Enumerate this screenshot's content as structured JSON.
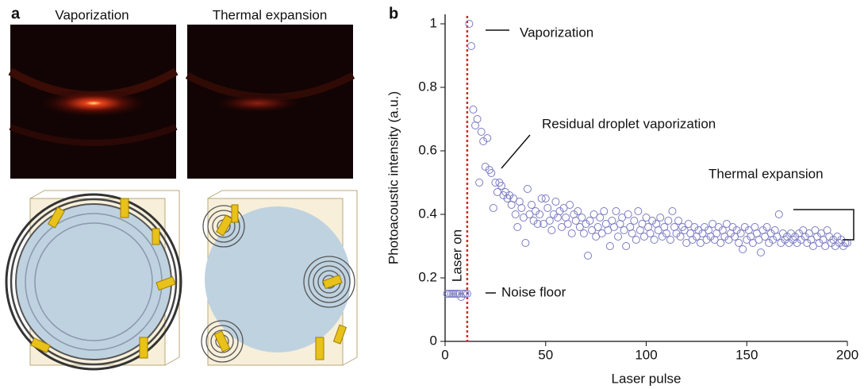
{
  "panel_a": {
    "label": "a",
    "titles": [
      "Vaporization",
      "Thermal expansion"
    ]
  },
  "chart_data": {
    "type": "scatter",
    "label": "b",
    "xlabel": "Laser pulse",
    "ylabel": "Photoacoustic intensity (a.u.)",
    "xlim": [
      0,
      200
    ],
    "xticks": [
      0,
      50,
      100,
      150,
      200
    ],
    "ylim": [
      0,
      1.03
    ],
    "yticks": [
      0,
      0.2,
      0.4,
      0.6,
      0.8,
      1
    ],
    "color": "#7a7ac4",
    "laser_on": {
      "x": 11,
      "color": "#d42a2a",
      "label": "Laser on"
    },
    "annotations": [
      "Vaporization",
      "Residual droplet  vaporization",
      "Thermal expansion",
      "Noise floor"
    ],
    "x": [
      1,
      2,
      3,
      4,
      5,
      6,
      7,
      8,
      9,
      10,
      11,
      12,
      13,
      14,
      15,
      16,
      17,
      18,
      19,
      20,
      21,
      22,
      23,
      24,
      25,
      26,
      27,
      28,
      29,
      30,
      31,
      32,
      33,
      34,
      35,
      36,
      37,
      38,
      39,
      40,
      41,
      42,
      43,
      44,
      45,
      46,
      47,
      48,
      49,
      50,
      51,
      52,
      53,
      54,
      55,
      56,
      57,
      58,
      59,
      60,
      61,
      62,
      63,
      64,
      65,
      66,
      67,
      68,
      69,
      70,
      71,
      72,
      73,
      74,
      75,
      76,
      77,
      78,
      79,
      80,
      81,
      82,
      83,
      84,
      85,
      86,
      87,
      88,
      89,
      90,
      91,
      92,
      93,
      94,
      95,
      96,
      97,
      98,
      99,
      100,
      101,
      102,
      103,
      104,
      105,
      106,
      107,
      108,
      109,
      110,
      111,
      112,
      113,
      114,
      115,
      116,
      117,
      118,
      119,
      120,
      121,
      122,
      123,
      124,
      125,
      126,
      127,
      128,
      129,
      130,
      131,
      132,
      133,
      134,
      135,
      136,
      137,
      138,
      139,
      140,
      141,
      142,
      143,
      144,
      145,
      146,
      147,
      148,
      149,
      150,
      151,
      152,
      153,
      154,
      155,
      156,
      157,
      158,
      159,
      160,
      161,
      162,
      163,
      164,
      165,
      166,
      167,
      168,
      169,
      170,
      171,
      172,
      173,
      174,
      175,
      176,
      177,
      178,
      179,
      180,
      181,
      182,
      183,
      184,
      185,
      186,
      187,
      188,
      189,
      190,
      191,
      192,
      193,
      194,
      195,
      196,
      197,
      198,
      199,
      200
    ],
    "values": [
      0.15,
      0.15,
      0.15,
      0.15,
      0.15,
      0.15,
      0.15,
      0.14,
      0.15,
      0.15,
      0.15,
      1.0,
      0.93,
      0.73,
      0.68,
      0.7,
      0.5,
      0.66,
      0.63,
      0.55,
      0.64,
      0.54,
      0.53,
      0.42,
      0.5,
      0.47,
      0.5,
      0.49,
      0.46,
      0.47,
      0.45,
      0.46,
      0.43,
      0.45,
      0.4,
      0.36,
      0.44,
      0.42,
      0.39,
      0.31,
      0.48,
      0.4,
      0.43,
      0.38,
      0.41,
      0.37,
      0.4,
      0.45,
      0.37,
      0.45,
      0.42,
      0.38,
      0.35,
      0.4,
      0.44,
      0.39,
      0.41,
      0.36,
      0.42,
      0.39,
      0.37,
      0.43,
      0.34,
      0.4,
      0.38,
      0.41,
      0.36,
      0.39,
      0.34,
      0.37,
      0.27,
      0.38,
      0.35,
      0.4,
      0.33,
      0.36,
      0.39,
      0.34,
      0.41,
      0.37,
      0.35,
      0.3,
      0.38,
      0.36,
      0.41,
      0.33,
      0.37,
      0.39,
      0.35,
      0.3,
      0.4,
      0.36,
      0.34,
      0.38,
      0.32,
      0.41,
      0.35,
      0.37,
      0.33,
      0.39,
      0.36,
      0.34,
      0.38,
      0.32,
      0.37,
      0.35,
      0.39,
      0.33,
      0.36,
      0.34,
      0.38,
      0.32,
      0.41,
      0.36,
      0.34,
      0.38,
      0.33,
      0.36,
      0.35,
      0.31,
      0.37,
      0.34,
      0.32,
      0.36,
      0.33,
      0.35,
      0.31,
      0.34,
      0.36,
      0.32,
      0.35,
      0.33,
      0.37,
      0.32,
      0.34,
      0.36,
      0.31,
      0.35,
      0.33,
      0.37,
      0.32,
      0.34,
      0.36,
      0.33,
      0.35,
      0.31,
      0.34,
      0.29,
      0.36,
      0.32,
      0.35,
      0.33,
      0.31,
      0.36,
      0.34,
      0.32,
      0.28,
      0.35,
      0.33,
      0.36,
      0.31,
      0.34,
      0.32,
      0.35,
      0.33,
      0.4,
      0.31,
      0.34,
      0.32,
      0.33,
      0.31,
      0.34,
      0.32,
      0.33,
      0.31,
      0.34,
      0.32,
      0.35,
      0.33,
      0.31,
      0.34,
      0.32,
      0.3,
      0.35,
      0.33,
      0.31,
      0.34,
      0.32,
      0.3,
      0.35,
      0.33,
      0.31,
      0.32,
      0.3,
      0.33,
      0.31,
      0.32,
      0.3,
      0.31,
      0.31
    ]
  }
}
